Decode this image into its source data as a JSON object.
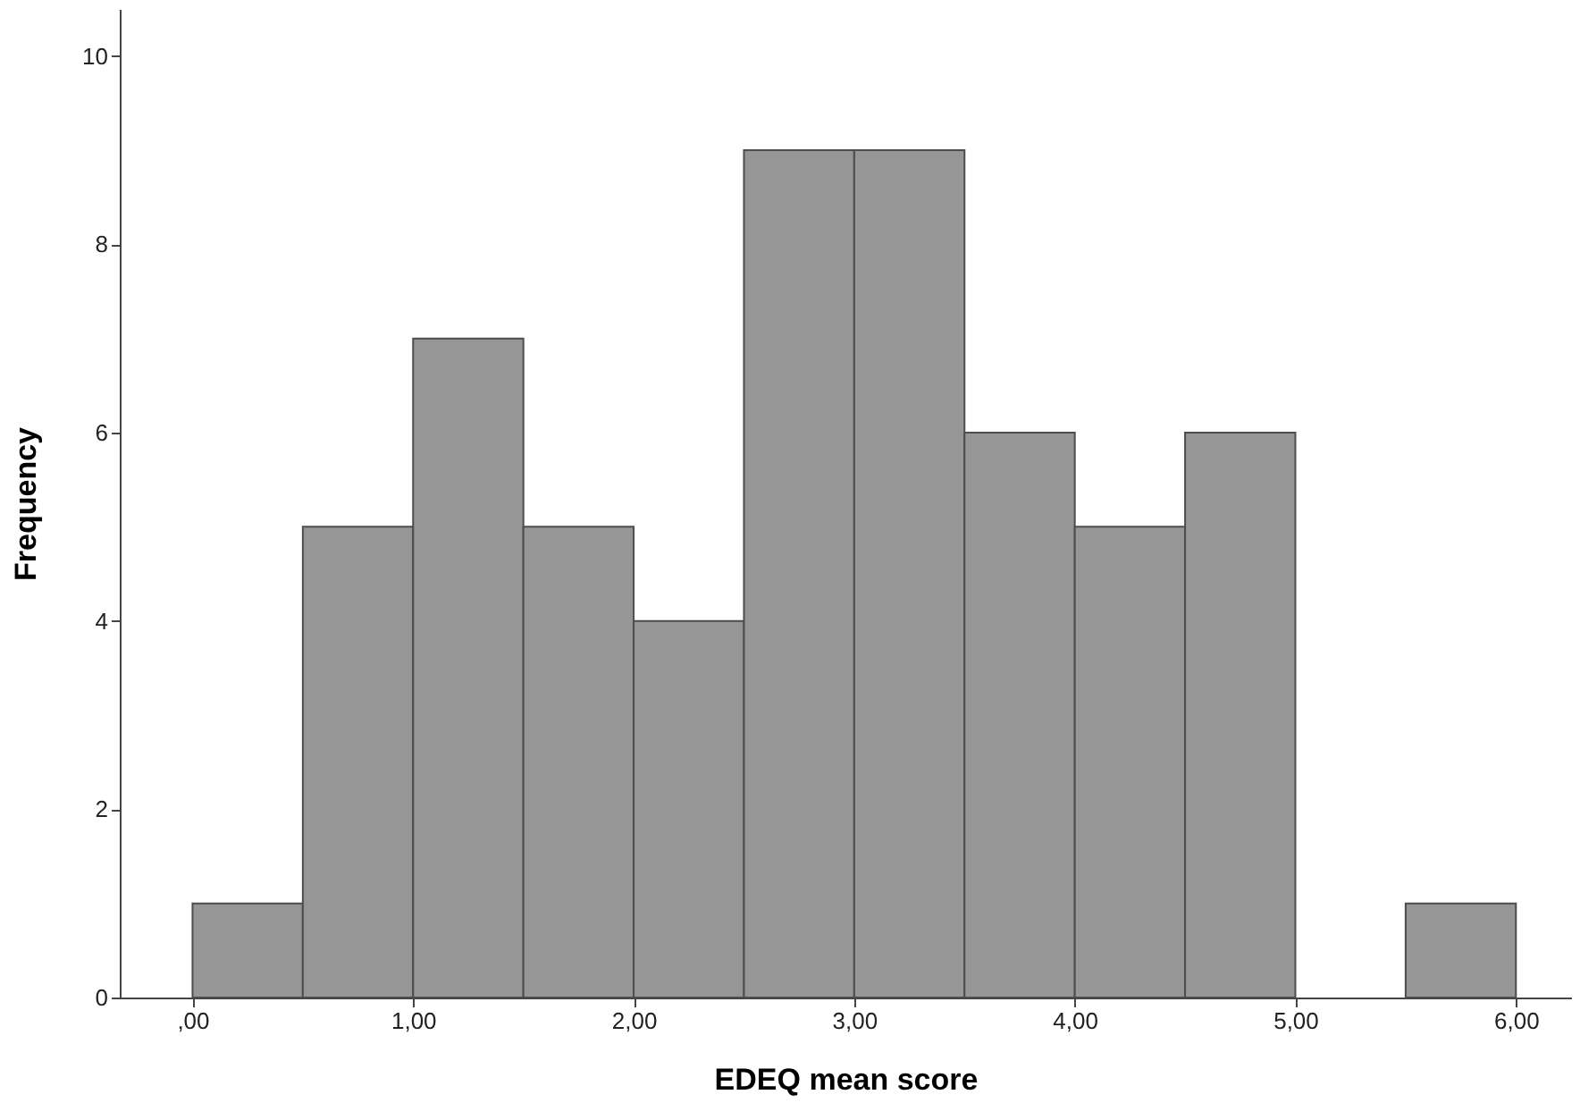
{
  "chart_data": {
    "type": "histogram",
    "xlabel": "EDEQ mean score",
    "ylabel": "Frequency",
    "bins": [
      0,
      0.5,
      1,
      1.5,
      2,
      2.5,
      3,
      3.5,
      4,
      4.5,
      5,
      5.5,
      6
    ],
    "values": [
      1,
      5,
      7,
      5,
      4,
      9,
      9,
      6,
      5,
      6,
      0,
      1
    ],
    "color": "#969696",
    "xlim": [
      -0.33,
      6.25
    ],
    "ylim": [
      0,
      10.5
    ],
    "xticks": [
      {
        "value": 0,
        "label": ",00"
      },
      {
        "value": 1,
        "label": "1,00"
      },
      {
        "value": 2,
        "label": "2,00"
      },
      {
        "value": 3,
        "label": "3,00"
      },
      {
        "value": 4,
        "label": "4,00"
      },
      {
        "value": 5,
        "label": "5,00"
      },
      {
        "value": 6,
        "label": "6,00"
      }
    ],
    "yticks": [
      0,
      2,
      4,
      6,
      8,
      10
    ],
    "grid": false
  }
}
